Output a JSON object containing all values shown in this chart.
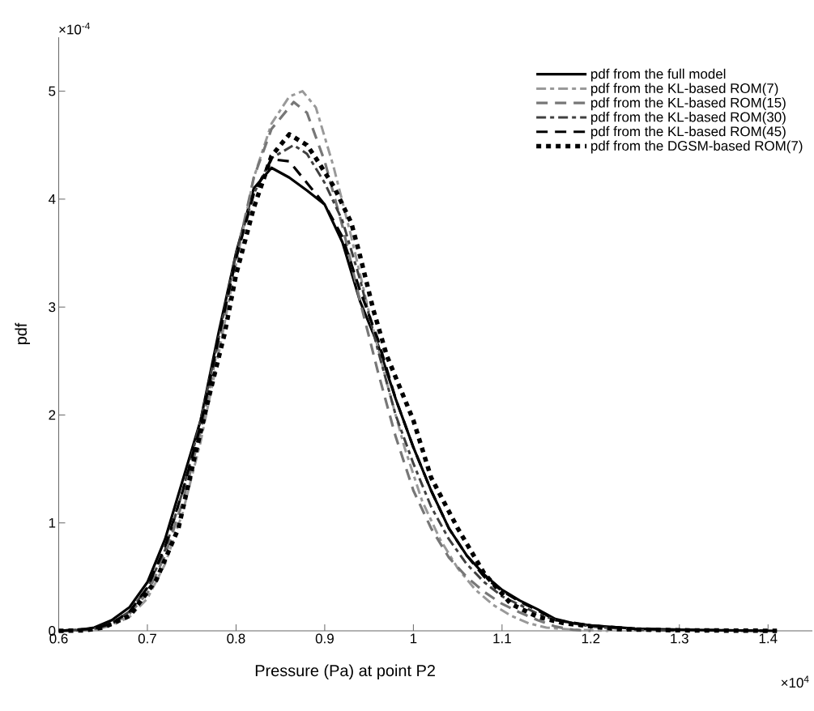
{
  "chart_data": {
    "type": "line",
    "xlabel": "Pressure (Pa) at point P2",
    "ylabel": "pdf",
    "annotations": [
      "×10$^{-4}$",
      "×10$^{4}$"
    ],
    "xlim": [
      0.6,
      1.45
    ],
    "xticks": [
      0.6,
      0.7,
      0.8,
      0.9,
      1,
      1.1,
      1.2,
      1.3,
      1.4
    ],
    "ylim": [
      0,
      5.5
    ],
    "yticks": [
      0,
      1,
      2,
      3,
      4,
      5
    ],
    "legend": "top right",
    "series": [
      {
        "name": "pdf from the full model",
        "color": "#000000",
        "line_style": "solid",
        "x": [
          0.6,
          0.62,
          0.64,
          0.66,
          0.68,
          0.7,
          0.72,
          0.74,
          0.76,
          0.78,
          0.8,
          0.82,
          0.84,
          0.86,
          0.88,
          0.9,
          0.92,
          0.94,
          0.96,
          0.98,
          1.0,
          1.02,
          1.04,
          1.06,
          1.08,
          1.1,
          1.12,
          1.14,
          1.16,
          1.18,
          1.2,
          1.25,
          1.3,
          1.35,
          1.41
        ],
        "values": [
          0,
          0.005,
          0.03,
          0.1,
          0.22,
          0.45,
          0.85,
          1.4,
          1.95,
          2.75,
          3.5,
          4.1,
          4.29,
          4.2,
          4.08,
          3.95,
          3.6,
          3.05,
          2.65,
          2.15,
          1.7,
          1.3,
          0.95,
          0.7,
          0.52,
          0.38,
          0.28,
          0.2,
          0.11,
          0.07,
          0.05,
          0.02,
          0.01,
          0.005,
          0
        ]
      },
      {
        "name": "pdf from the KL-based ROM(7)",
        "color": "#999999",
        "line_style": "dashdot",
        "x": [
          0.6,
          0.64,
          0.66,
          0.68,
          0.7,
          0.72,
          0.74,
          0.76,
          0.78,
          0.8,
          0.82,
          0.84,
          0.86,
          0.875,
          0.89,
          0.91,
          0.93,
          0.95,
          0.97,
          0.99,
          1.01,
          1.03,
          1.05,
          1.07,
          1.09,
          1.11,
          1.13,
          1.15,
          1.18,
          1.22
        ],
        "values": [
          0,
          0.01,
          0.05,
          0.13,
          0.3,
          0.62,
          1.1,
          1.75,
          2.55,
          3.4,
          4.2,
          4.7,
          4.95,
          5.0,
          4.85,
          4.3,
          3.65,
          2.95,
          2.3,
          1.7,
          1.2,
          0.85,
          0.58,
          0.38,
          0.24,
          0.14,
          0.07,
          0.03,
          0.01,
          0
        ]
      },
      {
        "name": "pdf from the KL-based ROM(15)",
        "color": "#777777",
        "line_style": "dashed",
        "x": [
          0.6,
          0.64,
          0.66,
          0.68,
          0.7,
          0.72,
          0.74,
          0.76,
          0.78,
          0.8,
          0.82,
          0.84,
          0.865,
          0.88,
          0.9,
          0.92,
          0.94,
          0.96,
          0.98,
          1.0,
          1.02,
          1.04,
          1.06,
          1.08,
          1.1,
          1.12,
          1.14,
          1.16,
          1.18,
          1.2
        ],
        "values": [
          0,
          0.01,
          0.06,
          0.16,
          0.35,
          0.7,
          1.2,
          1.85,
          2.65,
          3.45,
          4.2,
          4.65,
          4.9,
          4.8,
          4.35,
          3.75,
          3.05,
          2.4,
          1.8,
          1.3,
          0.95,
          0.68,
          0.5,
          0.36,
          0.25,
          0.17,
          0.1,
          0.04,
          0.01,
          0
        ]
      },
      {
        "name": "pdf from the KL-based ROM(30)",
        "color": "#404040",
        "line_style": "dashdot",
        "x": [
          0.6,
          0.64,
          0.66,
          0.68,
          0.7,
          0.72,
          0.74,
          0.76,
          0.78,
          0.8,
          0.82,
          0.84,
          0.865,
          0.88,
          0.9,
          0.92,
          0.94,
          0.96,
          0.98,
          1.0,
          1.02,
          1.04,
          1.06,
          1.08,
          1.1,
          1.12,
          1.14,
          1.16,
          1.2,
          1.25,
          1.3
        ],
        "values": [
          0,
          0.02,
          0.07,
          0.18,
          0.4,
          0.75,
          1.3,
          1.95,
          2.7,
          3.5,
          4.05,
          4.38,
          4.5,
          4.42,
          4.15,
          3.8,
          3.25,
          2.6,
          2.0,
          1.55,
          1.15,
          0.85,
          0.62,
          0.45,
          0.32,
          0.24,
          0.16,
          0.1,
          0.04,
          0.01,
          0
        ]
      },
      {
        "name": "pdf from the KL-based ROM(45)",
        "color": "#000000",
        "line_style": "dashed",
        "x": [
          0.6,
          0.64,
          0.66,
          0.68,
          0.7,
          0.72,
          0.74,
          0.76,
          0.78,
          0.8,
          0.82,
          0.84,
          0.86,
          0.88,
          0.9,
          0.92,
          0.94,
          0.96,
          0.98,
          1.0,
          1.02,
          1.04,
          1.06,
          1.08,
          1.1,
          1.12,
          1.14,
          1.16,
          1.2,
          1.25,
          1.3,
          1.4
        ],
        "values": [
          0,
          0.02,
          0.07,
          0.18,
          0.4,
          0.78,
          1.3,
          1.9,
          2.7,
          3.45,
          4.05,
          4.37,
          4.35,
          4.15,
          3.95,
          3.65,
          3.15,
          2.7,
          2.15,
          1.7,
          1.3,
          0.95,
          0.7,
          0.5,
          0.37,
          0.27,
          0.19,
          0.1,
          0.05,
          0.02,
          0.01,
          0
        ]
      },
      {
        "name": "pdf from the DGSM-based ROM(7)",
        "color": "#000000",
        "line_style": "dotted",
        "x": [
          0.6,
          0.63,
          0.65,
          0.68,
          0.71,
          0.735,
          0.753,
          0.771,
          0.787,
          0.8,
          0.82,
          0.84,
          0.86,
          0.88,
          0.89,
          0.91,
          0.93,
          0.94,
          0.955,
          0.97,
          1.0,
          1.02,
          1.05,
          1.08,
          1.11,
          1.14,
          1.17,
          1.23,
          1.3,
          1.41
        ],
        "values": [
          0,
          0.005,
          0.03,
          0.14,
          0.47,
          0.95,
          1.6,
          2.22,
          2.75,
          3.3,
          3.92,
          4.4,
          4.6,
          4.5,
          4.38,
          4.12,
          3.78,
          3.47,
          2.97,
          2.55,
          1.95,
          1.42,
          0.95,
          0.53,
          0.25,
          0.13,
          0.07,
          0.015,
          0.005,
          0
        ]
      }
    ]
  }
}
